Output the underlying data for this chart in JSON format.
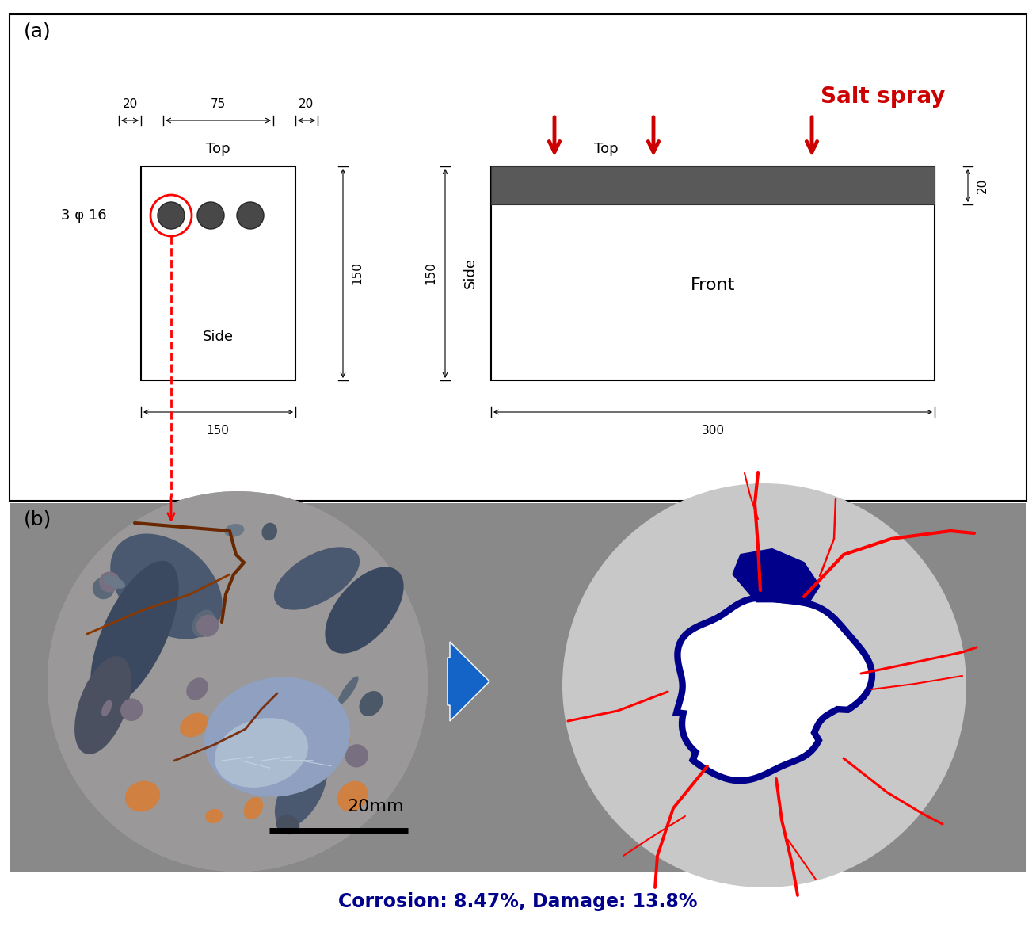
{
  "fig_width": 13.08,
  "fig_height": 11.8,
  "bg_color": "#ffffff",
  "panel_a_label": "(a)",
  "panel_b_label": "(b)",
  "salt_spray_text": "Salt spray",
  "salt_spray_color": "#cc0000",
  "corrosion_text": "Corrosion: 8.47%, Damage: 13.8%",
  "corrosion_color": "#00008B",
  "grey_bg": "#898989",
  "light_grey_circle": "#c8c8c8",
  "dark_grey_bar": "#595959",
  "blue_arrow_color": "#1464c8",
  "navy_blue": "#00008B",
  "dim_fs": 11,
  "label_fs": 13,
  "panel_fs": 18,
  "corr_fs": 17,
  "ss_fs": 20
}
